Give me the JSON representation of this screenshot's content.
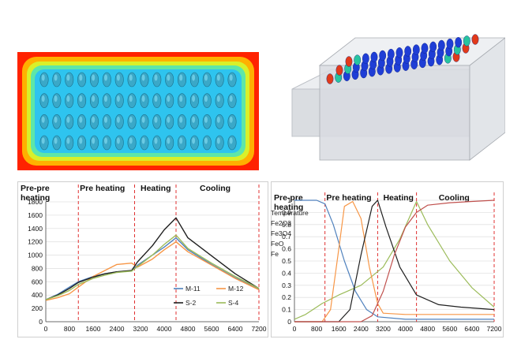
{
  "chart_data": [
    {
      "type": "line",
      "x": [
        0,
        400,
        800,
        1100,
        1600,
        2000,
        2400,
        2900,
        3100,
        3600,
        4000,
        4400,
        4800,
        5600,
        6400,
        7200
      ],
      "xticks": [
        "0",
        "800",
        "1600",
        "2400",
        "3200",
        "4000",
        "4800",
        "5600",
        "6400",
        "7200"
      ],
      "yticks": [
        "0",
        "200",
        "400",
        "600",
        "800",
        "1000",
        "1200",
        "1400",
        "1600",
        "1800"
      ],
      "xlim": [
        0,
        7200
      ],
      "ylim": [
        0,
        1800
      ],
      "phase_labels": [
        {
          "line1": "Pre-pre",
          "line2": "heating",
          "x": 0
        },
        {
          "line1": "Pre heating",
          "line2": "",
          "x": 1150
        },
        {
          "line1": "Heating",
          "line2": "",
          "x": 3200
        },
        {
          "line1": "Cooling",
          "line2": "",
          "x": 5200
        }
      ],
      "phase_boundaries": [
        1100,
        3000,
        4400,
        7200
      ],
      "series": [
        {
          "name": "M-11",
          "color": "#4f81bd",
          "values": [
            330,
            410,
            520,
            600,
            680,
            720,
            750,
            760,
            850,
            1000,
            1120,
            1260,
            1080,
            860,
            660,
            490
          ]
        },
        {
          "name": "M-12",
          "color": "#f79646",
          "values": [
            320,
            360,
            420,
            520,
            680,
            770,
            860,
            880,
            820,
            940,
            1080,
            1200,
            1050,
            850,
            650,
            480
          ]
        },
        {
          "name": "S-2",
          "color": "#1f1f1f",
          "values": [
            330,
            400,
            500,
            590,
            670,
            720,
            750,
            770,
            900,
            1140,
            1380,
            1560,
            1260,
            990,
            720,
            500
          ]
        },
        {
          "name": "S-4",
          "color": "#9bbb59",
          "values": [
            330,
            390,
            470,
            560,
            650,
            700,
            740,
            760,
            830,
            1000,
            1160,
            1300,
            1100,
            880,
            680,
            500
          ]
        }
      ],
      "legend_position": "lower-right"
    },
    {
      "type": "line",
      "xticks": [
        "0",
        "800",
        "1600",
        "2400",
        "3200",
        "4000",
        "4800",
        "5600",
        "6400",
        "7200"
      ],
      "yticks": [
        "0",
        "0.1",
        "0.2",
        "0.3",
        "0.4",
        "0.5",
        "0.6",
        "0.7",
        "0.8",
        "0.9",
        "1"
      ],
      "xlim": [
        0,
        7200
      ],
      "ylim": [
        0,
        1
      ],
      "phase_labels": [
        {
          "line1": "Pre-pre",
          "line2": "heating",
          "x": 0
        },
        {
          "line1": "Pre heating",
          "line2": "",
          "x": 1150
        },
        {
          "line1": "Heating",
          "line2": "",
          "x": 3200
        },
        {
          "line1": "Cooling",
          "line2": "",
          "x": 5200
        }
      ],
      "phase_boundaries": [
        1100,
        3000,
        4400,
        7200
      ],
      "series": [
        {
          "name": "Temperature",
          "color": "#9bbb59",
          "x": [
            0,
            400,
            1000,
            1600,
            2400,
            3200,
            3800,
            4400,
            4800,
            5600,
            6400,
            7200
          ],
          "values": [
            0.02,
            0.06,
            0.15,
            0.22,
            0.3,
            0.45,
            0.68,
            0.99,
            0.8,
            0.5,
            0.28,
            0.12
          ]
        },
        {
          "name": "Fe2O3",
          "color": "#4f81bd",
          "x": [
            0,
            800,
            1100,
            1400,
            1800,
            2200,
            2600,
            3000,
            4000,
            7200
          ],
          "values": [
            1,
            1,
            0.97,
            0.8,
            0.5,
            0.25,
            0.1,
            0.04,
            0.02,
            0.02
          ]
        },
        {
          "name": "Fe3O4",
          "color": "#f79646",
          "x": [
            0,
            1000,
            1300,
            1600,
            1800,
            2100,
            2400,
            2700,
            3000,
            3200,
            4000,
            7200
          ],
          "values": [
            0,
            0,
            0.1,
            0.6,
            0.95,
            0.99,
            0.85,
            0.45,
            0.15,
            0.07,
            0.06,
            0.06
          ]
        },
        {
          "name": "FeO",
          "color": "#1f1f1f",
          "x": [
            0,
            1600,
            2000,
            2400,
            2800,
            3000,
            3300,
            3800,
            4400,
            5200,
            6000,
            7200
          ],
          "values": [
            0,
            0,
            0.1,
            0.55,
            0.95,
            1,
            0.78,
            0.45,
            0.22,
            0.14,
            0.12,
            0.1
          ]
        },
        {
          "name": "Fe",
          "color": "#c0504d",
          "x": [
            0,
            2400,
            2800,
            3200,
            3600,
            4000,
            4400,
            4800,
            5600,
            6400,
            7200
          ],
          "values": [
            0,
            0,
            0.05,
            0.25,
            0.55,
            0.78,
            0.9,
            0.96,
            0.98,
            0.99,
            1
          ]
        }
      ],
      "legend_position": "right"
    }
  ],
  "images": {
    "heatmap": {
      "description_colors": [
        "#ff1a00",
        "#ffd000",
        "#9af06a",
        "#22c8f0"
      ],
      "pellet_rows": 4,
      "pellet_cols": 16
    },
    "model": {
      "pellet_rows": 3,
      "pellet_cols": 16
    }
  }
}
